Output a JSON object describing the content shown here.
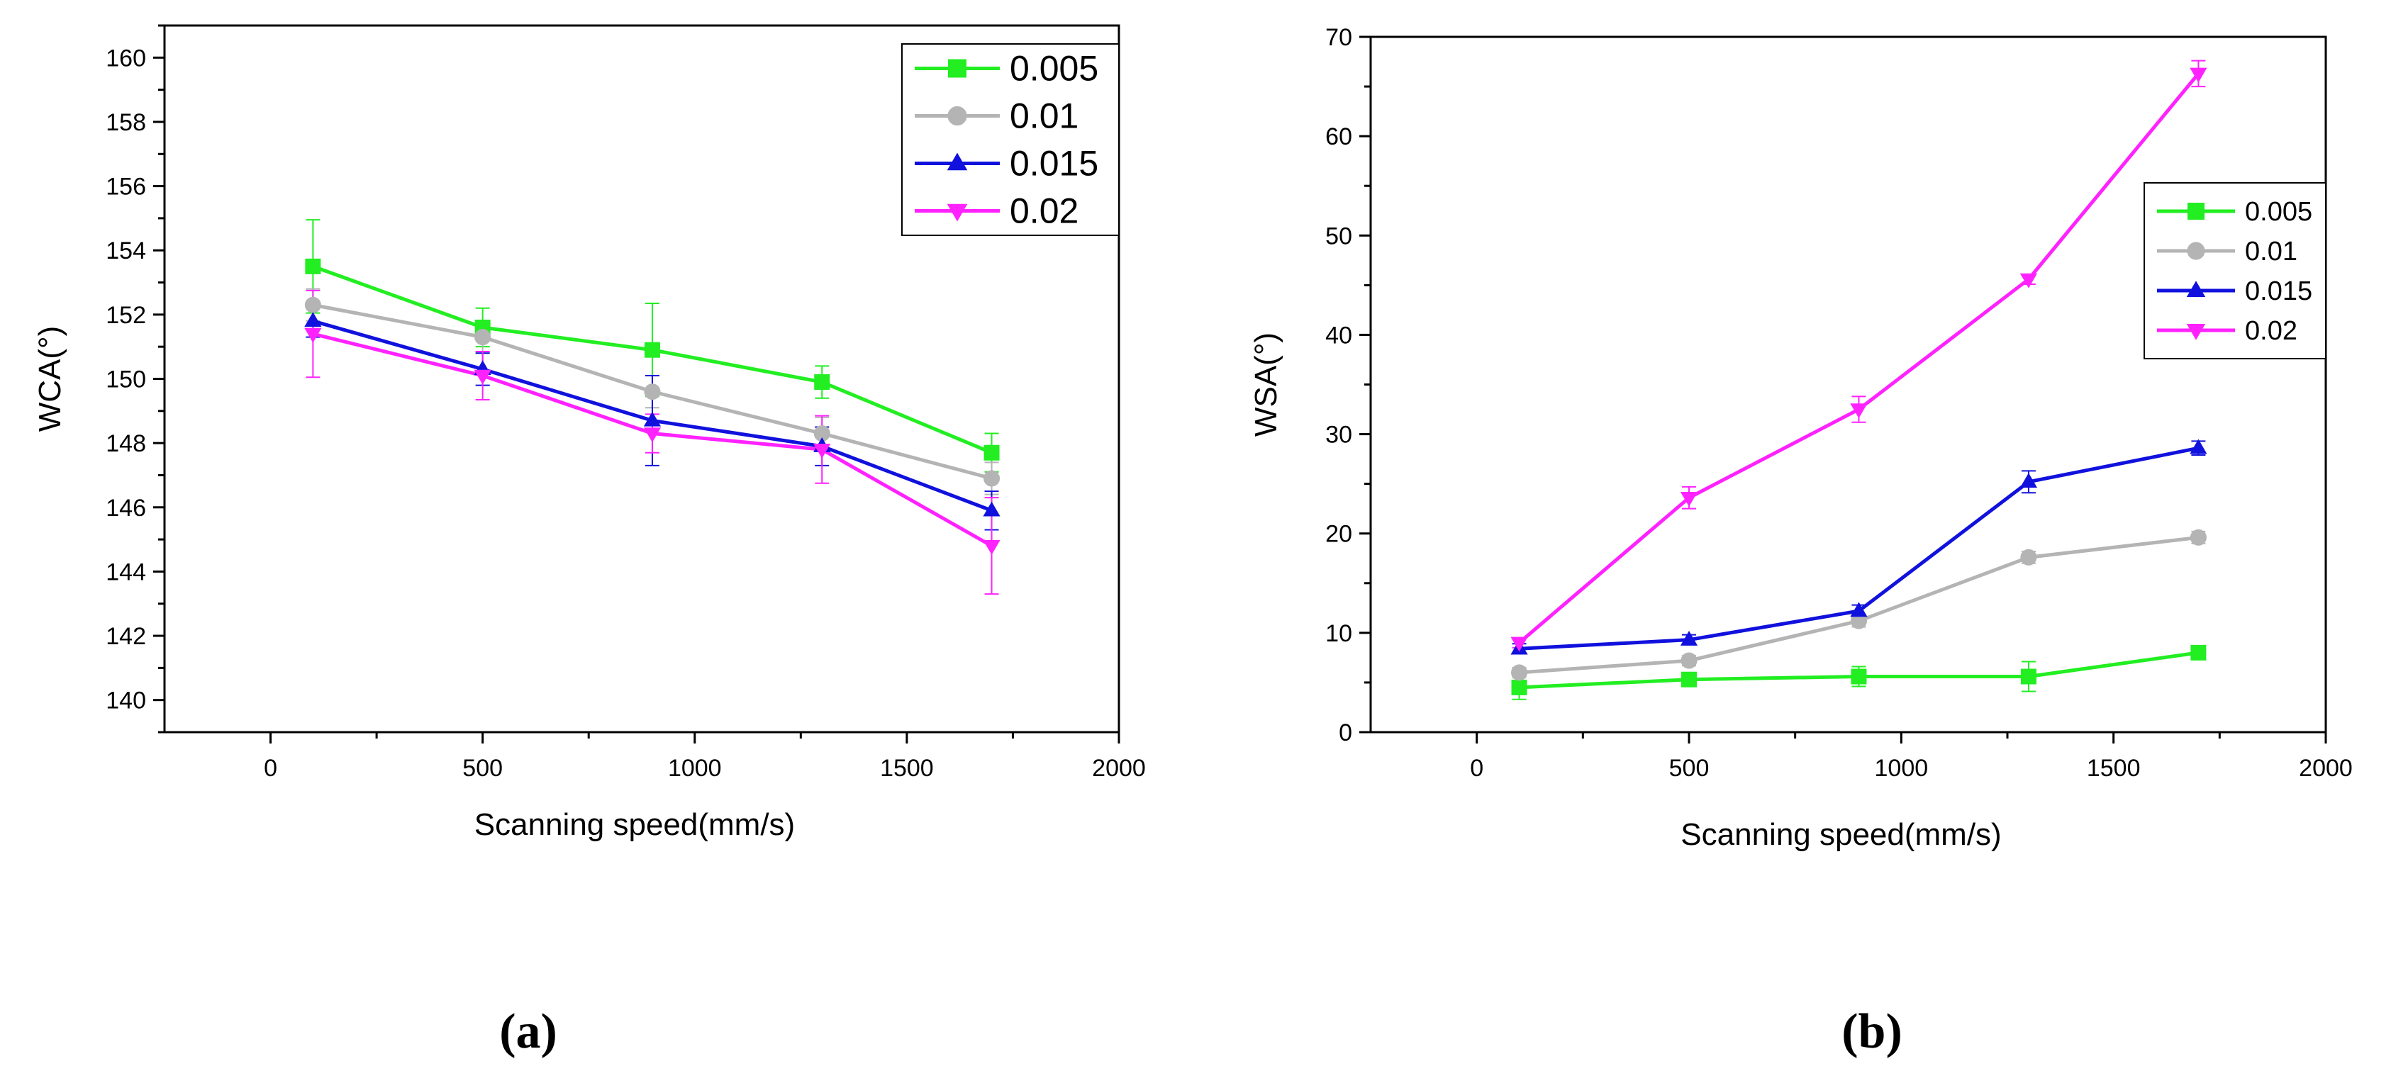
{
  "chart_data": [
    {
      "id": "a",
      "type": "line",
      "panel_label": "(a)",
      "xlabel": "Scanning speed(mm/s)",
      "ylabel": "WCA(°)",
      "xlim": [
        -250,
        2000
      ],
      "ylim": [
        139,
        161
      ],
      "xticks": [
        0,
        500,
        1000,
        1500,
        2000
      ],
      "yticks": [
        140,
        142,
        144,
        146,
        148,
        150,
        152,
        154,
        156,
        158,
        160
      ],
      "legend_position": "top-right",
      "x": [
        100,
        500,
        900,
        1300,
        1700
      ],
      "series": [
        {
          "name": "0.005",
          "marker": "square",
          "color": "#22ee22",
          "values": [
            153.5,
            151.6,
            150.9,
            149.9,
            147.7
          ],
          "errors": [
            1.45,
            0.6,
            1.45,
            0.5,
            0.6
          ]
        },
        {
          "name": "0.01",
          "marker": "circle",
          "color": "#b4b4b4",
          "values": [
            152.3,
            151.3,
            149.6,
            148.3,
            146.9
          ],
          "errors": [
            0.5,
            0.5,
            0.5,
            0.5,
            0.5
          ]
        },
        {
          "name": "0.015",
          "marker": "triangle-up",
          "color": "#1111dd",
          "values": [
            151.8,
            150.3,
            148.7,
            147.9,
            145.9
          ],
          "errors": [
            0.5,
            0.5,
            1.4,
            0.6,
            0.6
          ]
        },
        {
          "name": "0.02",
          "marker": "triangle-down",
          "color": "#ff22ff",
          "values": [
            151.4,
            150.1,
            148.3,
            147.8,
            144.8
          ],
          "errors": [
            1.35,
            0.75,
            0.6,
            1.05,
            1.5
          ]
        }
      ]
    },
    {
      "id": "b",
      "type": "line",
      "panel_label": "(b)",
      "xlabel": "Scanning speed(mm/s)",
      "ylabel": "WSA(°)",
      "xlim": [
        -250,
        2000
      ],
      "ylim": [
        0,
        70
      ],
      "xticks": [
        0,
        500,
        1000,
        1500,
        2000
      ],
      "yticks": [
        0,
        10,
        20,
        30,
        40,
        50,
        60,
        70
      ],
      "legend_position": "right",
      "x": [
        100,
        500,
        900,
        1300,
        1700
      ],
      "series": [
        {
          "name": "0.005",
          "marker": "square",
          "color": "#22ee22",
          "values": [
            4.5,
            5.3,
            5.6,
            5.6,
            8.0
          ],
          "errors": [
            1.2,
            0.5,
            1.0,
            1.5,
            0.6
          ]
        },
        {
          "name": "0.01",
          "marker": "circle",
          "color": "#b4b4b4",
          "values": [
            6.0,
            7.2,
            11.2,
            17.6,
            19.6
          ],
          "errors": [
            0.5,
            0.5,
            0.6,
            0.6,
            0.6
          ]
        },
        {
          "name": "0.015",
          "marker": "triangle-up",
          "color": "#1111dd",
          "values": [
            8.4,
            9.3,
            12.2,
            25.2,
            28.6
          ],
          "errors": [
            0.5,
            0.5,
            0.6,
            1.1,
            0.7
          ]
        },
        {
          "name": "0.02",
          "marker": "triangle-down",
          "color": "#ff22ff",
          "values": [
            9.0,
            23.6,
            32.5,
            45.6,
            66.3
          ],
          "errors": [
            0.5,
            1.1,
            1.3,
            0.5,
            1.3
          ]
        }
      ]
    }
  ]
}
